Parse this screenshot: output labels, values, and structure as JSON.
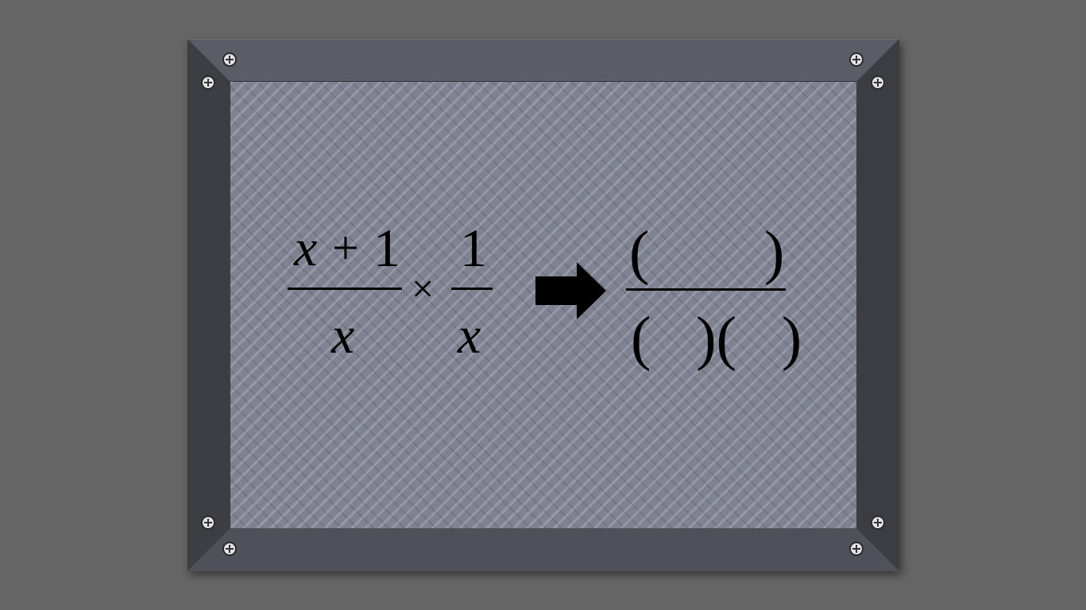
{
  "expression": {
    "fraction1": {
      "numerator": "x+1",
      "numerator_var": "x",
      "numerator_op": "+",
      "numerator_num": "1",
      "denominator": "x"
    },
    "operator": "×",
    "fraction2": {
      "numerator": "1",
      "denominator": "x"
    }
  },
  "answer": {
    "numerator_left_paren": "(",
    "numerator_right_paren": ")",
    "denominator": "(   )(   )"
  },
  "icons": {
    "arrow": "right-arrow-icon",
    "screw": "screw-icon"
  },
  "colors": {
    "background": "#656565",
    "frame": "#4a4b52",
    "plate": "#7f8291",
    "ink": "#000000"
  }
}
